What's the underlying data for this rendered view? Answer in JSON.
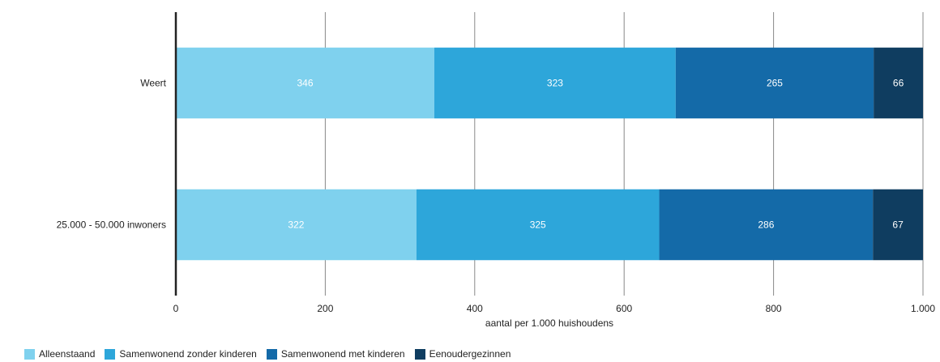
{
  "chart_data": {
    "type": "bar",
    "orientation": "horizontal",
    "stacked": true,
    "categories": [
      "Weert",
      "25.000 - 50.000 inwoners"
    ],
    "series": [
      {
        "name": "Alleenstaand",
        "values": [
          346,
          322
        ],
        "color": "#7fd1ee"
      },
      {
        "name": "Samenwonend zonder kinderen",
        "values": [
          323,
          325
        ],
        "color": "#2da6da"
      },
      {
        "name": "Samenwonend met kinderen",
        "values": [
          265,
          286
        ],
        "color": "#146aa8"
      },
      {
        "name": "Eenoudergezinnen",
        "values": [
          66,
          67
        ],
        "color": "#0f3d60"
      }
    ],
    "xlabel": "aantal per 1.000 huishoudens",
    "xlim": [
      0,
      1000
    ],
    "xticks": [
      "0",
      "200",
      "400",
      "600",
      "800",
      "1.000"
    ],
    "xtick_values": [
      0,
      200,
      400,
      600,
      800,
      1000
    ],
    "grid": "vertical",
    "legend": "bottom-left"
  }
}
